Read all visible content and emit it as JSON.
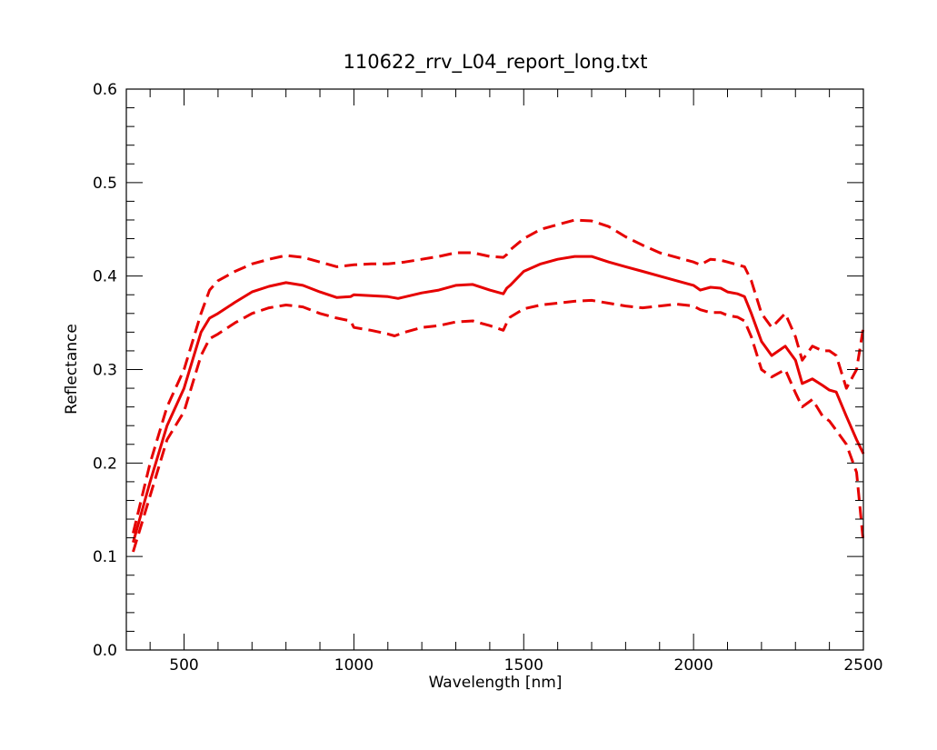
{
  "chart_data": {
    "type": "line",
    "title": "110622_rrv_L04_report_long.txt",
    "xlabel": "Wavelength [nm]",
    "ylabel": "Reflectance",
    "xlim": [
      330,
      2500
    ],
    "ylim": [
      0.0,
      0.6
    ],
    "xticks": [
      500,
      1000,
      1500,
      2000,
      2500
    ],
    "yticks": [
      0.0,
      0.1,
      0.2,
      0.3,
      0.4,
      0.5,
      0.6
    ],
    "ytick_labels": [
      "0.0",
      "0.1",
      "0.2",
      "0.3",
      "0.4",
      "0.5",
      "0.6"
    ],
    "grid": false,
    "color": "#e60000",
    "series": [
      {
        "style": "solid",
        "x": [
          350,
          400,
          450,
          500,
          550,
          575,
          600,
          650,
          700,
          750,
          800,
          850,
          900,
          950,
          990,
          1000,
          1050,
          1100,
          1130,
          1200,
          1250,
          1300,
          1350,
          1400,
          1440,
          1450,
          1460,
          1500,
          1550,
          1600,
          1650,
          1700,
          1750,
          1800,
          1850,
          1900,
          1950,
          2000,
          2020,
          2050,
          2080,
          2100,
          2130,
          2150,
          2170,
          2200,
          2230,
          2270,
          2300,
          2320,
          2350,
          2380,
          2400,
          2420,
          2450,
          2480,
          2500
        ],
        "y": [
          0.115,
          0.18,
          0.24,
          0.28,
          0.34,
          0.355,
          0.36,
          0.372,
          0.383,
          0.389,
          0.393,
          0.39,
          0.383,
          0.377,
          0.378,
          0.38,
          0.379,
          0.378,
          0.376,
          0.382,
          0.385,
          0.39,
          0.391,
          0.385,
          0.381,
          0.387,
          0.39,
          0.405,
          0.413,
          0.418,
          0.421,
          0.421,
          0.415,
          0.41,
          0.405,
          0.4,
          0.395,
          0.39,
          0.385,
          0.388,
          0.387,
          0.383,
          0.381,
          0.378,
          0.36,
          0.33,
          0.315,
          0.325,
          0.31,
          0.285,
          0.29,
          0.283,
          0.278,
          0.276,
          0.25,
          0.225,
          0.21
        ]
      },
      {
        "style": "dashed",
        "x": [
          350,
          400,
          450,
          500,
          550,
          575,
          600,
          650,
          700,
          750,
          800,
          850,
          900,
          950,
          1000,
          1050,
          1100,
          1150,
          1200,
          1250,
          1300,
          1350,
          1400,
          1440,
          1450,
          1460,
          1500,
          1550,
          1600,
          1650,
          1700,
          1750,
          1800,
          1850,
          1900,
          1950,
          2000,
          2020,
          2050,
          2080,
          2100,
          2130,
          2150,
          2170,
          2200,
          2230,
          2270,
          2300,
          2320,
          2350,
          2380,
          2400,
          2420,
          2450,
          2480,
          2500
        ],
        "y": [
          0.125,
          0.2,
          0.26,
          0.3,
          0.36,
          0.385,
          0.395,
          0.405,
          0.413,
          0.418,
          0.422,
          0.42,
          0.415,
          0.41,
          0.412,
          0.413,
          0.413,
          0.415,
          0.418,
          0.421,
          0.425,
          0.425,
          0.421,
          0.42,
          0.423,
          0.428,
          0.44,
          0.45,
          0.455,
          0.46,
          0.459,
          0.453,
          0.442,
          0.433,
          0.425,
          0.42,
          0.415,
          0.412,
          0.418,
          0.417,
          0.415,
          0.412,
          0.41,
          0.395,
          0.36,
          0.345,
          0.36,
          0.335,
          0.31,
          0.325,
          0.32,
          0.32,
          0.315,
          0.28,
          0.3,
          0.345
        ]
      },
      {
        "style": "dashed",
        "x": [
          350,
          400,
          450,
          500,
          550,
          575,
          600,
          650,
          700,
          750,
          800,
          850,
          900,
          950,
          990,
          1000,
          1050,
          1100,
          1120,
          1150,
          1200,
          1250,
          1300,
          1350,
          1400,
          1440,
          1450,
          1460,
          1500,
          1550,
          1600,
          1650,
          1700,
          1750,
          1800,
          1850,
          1900,
          1950,
          2000,
          2020,
          2050,
          2080,
          2100,
          2130,
          2150,
          2170,
          2200,
          2230,
          2270,
          2300,
          2320,
          2350,
          2380,
          2400,
          2420,
          2450,
          2480,
          2500
        ],
        "y": [
          0.105,
          0.165,
          0.225,
          0.255,
          0.315,
          0.333,
          0.338,
          0.35,
          0.36,
          0.366,
          0.369,
          0.367,
          0.36,
          0.355,
          0.352,
          0.345,
          0.342,
          0.338,
          0.336,
          0.34,
          0.345,
          0.347,
          0.351,
          0.352,
          0.347,
          0.342,
          0.35,
          0.356,
          0.365,
          0.369,
          0.371,
          0.373,
          0.374,
          0.371,
          0.368,
          0.366,
          0.368,
          0.37,
          0.368,
          0.364,
          0.361,
          0.361,
          0.358,
          0.356,
          0.352,
          0.335,
          0.3,
          0.292,
          0.3,
          0.275,
          0.26,
          0.268,
          0.25,
          0.245,
          0.235,
          0.22,
          0.19,
          0.115
        ]
      }
    ]
  }
}
